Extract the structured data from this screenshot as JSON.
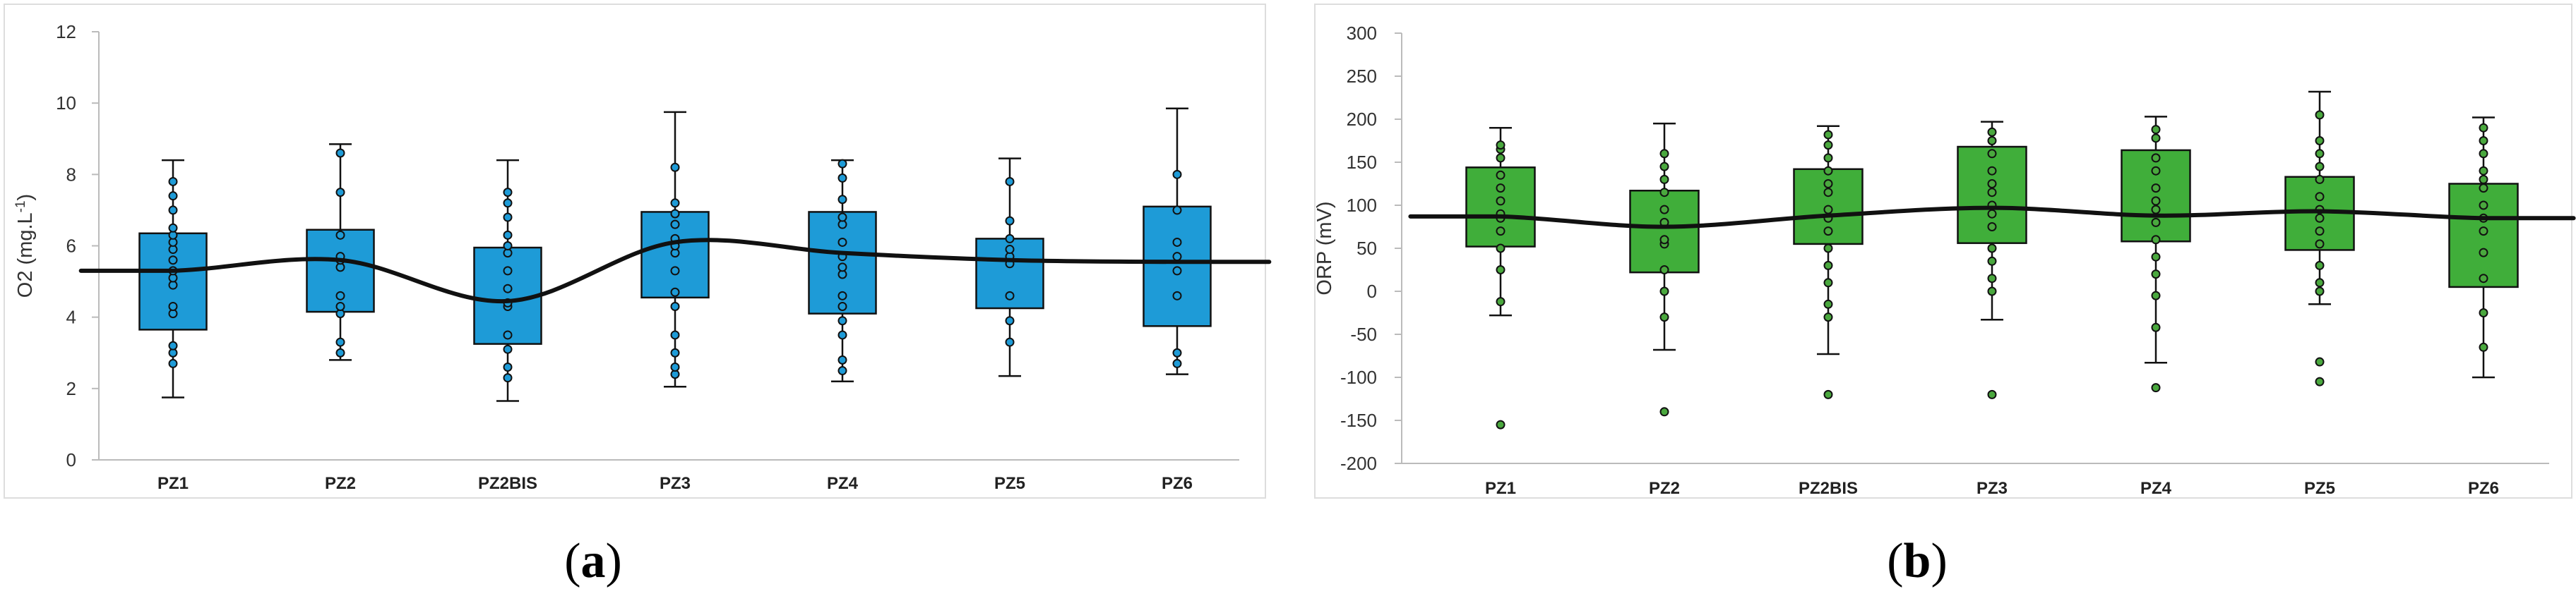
{
  "chart_data": [
    {
      "type": "box",
      "panel_label": "a",
      "ylabel": "O2 (mg.L",
      "ylabel_sup": "-1",
      "ylabel_end": ")",
      "ylim": [
        0,
        12
      ],
      "yticks": [
        0,
        2,
        4,
        6,
        8,
        10,
        12
      ],
      "categories": [
        "PZ1",
        "PZ2",
        "PZ2BIS",
        "PZ3",
        "PZ4",
        "PZ5",
        "PZ6"
      ],
      "box_color": "#1e9bd7",
      "point_color": "#1e9bd7",
      "boxes": [
        {
          "min": 1.75,
          "q1": 3.65,
          "median": 5.3,
          "q3": 6.35,
          "max": 8.4,
          "points": [
            2.7,
            3.0,
            3.2,
            4.1,
            4.3,
            4.9,
            5.1,
            5.3,
            5.6,
            5.9,
            6.1,
            6.3,
            6.5,
            7.0,
            7.4,
            7.8
          ]
        },
        {
          "min": 2.8,
          "q1": 4.15,
          "median": 5.6,
          "q3": 6.45,
          "max": 8.85,
          "points": [
            3.0,
            3.3,
            4.1,
            4.3,
            4.6,
            5.4,
            5.6,
            5.7,
            6.3,
            7.5,
            8.6
          ]
        },
        {
          "min": 1.65,
          "q1": 3.25,
          "median": 4.45,
          "q3": 5.95,
          "max": 8.4,
          "points": [
            2.3,
            2.6,
            3.1,
            3.5,
            4.3,
            4.4,
            4.8,
            5.3,
            5.8,
            6.0,
            6.3,
            6.8,
            7.2,
            7.5
          ]
        },
        {
          "min": 2.05,
          "q1": 4.55,
          "median": 6.1,
          "q3": 6.95,
          "max": 9.75,
          "points": [
            2.4,
            2.6,
            3.0,
            3.5,
            4.3,
            4.7,
            5.3,
            5.8,
            6.0,
            6.2,
            6.6,
            6.9,
            7.2,
            8.2
          ]
        },
        {
          "min": 2.2,
          "q1": 4.1,
          "median": 5.8,
          "q3": 6.95,
          "max": 8.4,
          "points": [
            2.5,
            2.8,
            3.5,
            3.9,
            4.3,
            4.6,
            5.2,
            5.4,
            5.7,
            6.1,
            6.6,
            6.8,
            7.3,
            7.9,
            8.3
          ]
        },
        {
          "min": 2.35,
          "q1": 4.25,
          "median": 5.6,
          "q3": 6.2,
          "max": 8.45,
          "points": [
            3.3,
            3.9,
            4.6,
            5.5,
            5.7,
            5.9,
            6.2,
            6.7,
            7.8
          ]
        },
        {
          "min": 2.4,
          "q1": 3.75,
          "median": 5.55,
          "q3": 7.1,
          "max": 9.85,
          "points": [
            2.7,
            3.0,
            4.6,
            5.3,
            5.7,
            6.1,
            7.0,
            8.0
          ]
        }
      ]
    },
    {
      "type": "box",
      "panel_label": "b",
      "ylabel": "ORP (mV)",
      "ylim": [
        -200,
        300
      ],
      "yticks": [
        -200,
        -150,
        -100,
        -50,
        0,
        50,
        100,
        150,
        200,
        250,
        300
      ],
      "categories": [
        "PZ1",
        "PZ2",
        "PZ2BIS",
        "PZ3",
        "PZ4",
        "PZ5",
        "PZ6"
      ],
      "box_color": "#40ae3a",
      "point_color": "#4aa83e",
      "boxes": [
        {
          "min": -28,
          "q1": 52,
          "median": 87,
          "q3": 144,
          "max": 190,
          "points": [
            -155,
            -12,
            25,
            50,
            70,
            85,
            90,
            105,
            120,
            135,
            155,
            165,
            170
          ]
        },
        {
          "min": -68,
          "q1": 22,
          "median": 75,
          "q3": 117,
          "max": 195,
          "points": [
            -140,
            -30,
            0,
            25,
            55,
            60,
            80,
            95,
            115,
            130,
            145,
            160
          ]
        },
        {
          "min": -73,
          "q1": 55,
          "median": 88,
          "q3": 142,
          "max": 192,
          "points": [
            -120,
            -30,
            -15,
            10,
            30,
            50,
            70,
            85,
            95,
            115,
            125,
            140,
            155,
            170,
            182
          ]
        },
        {
          "min": -33,
          "q1": 56,
          "median": 97,
          "q3": 168,
          "max": 197,
          "points": [
            -120,
            0,
            15,
            35,
            50,
            75,
            90,
            100,
            115,
            125,
            140,
            160,
            175,
            185
          ]
        },
        {
          "min": -83,
          "q1": 58,
          "median": 88,
          "q3": 164,
          "max": 203,
          "points": [
            -112,
            -42,
            -5,
            20,
            40,
            60,
            80,
            95,
            105,
            120,
            140,
            155,
            178,
            188
          ]
        },
        {
          "min": -15,
          "q1": 48,
          "median": 93,
          "q3": 133,
          "max": 232,
          "points": [
            -105,
            -82,
            0,
            10,
            30,
            55,
            70,
            85,
            95,
            110,
            130,
            145,
            160,
            175,
            205
          ]
        },
        {
          "min": -100,
          "q1": 5,
          "median": 85,
          "q3": 125,
          "max": 202,
          "points": [
            -65,
            -25,
            15,
            45,
            70,
            85,
            100,
            120,
            130,
            140,
            160,
            175,
            190
          ]
        }
      ]
    }
  ]
}
